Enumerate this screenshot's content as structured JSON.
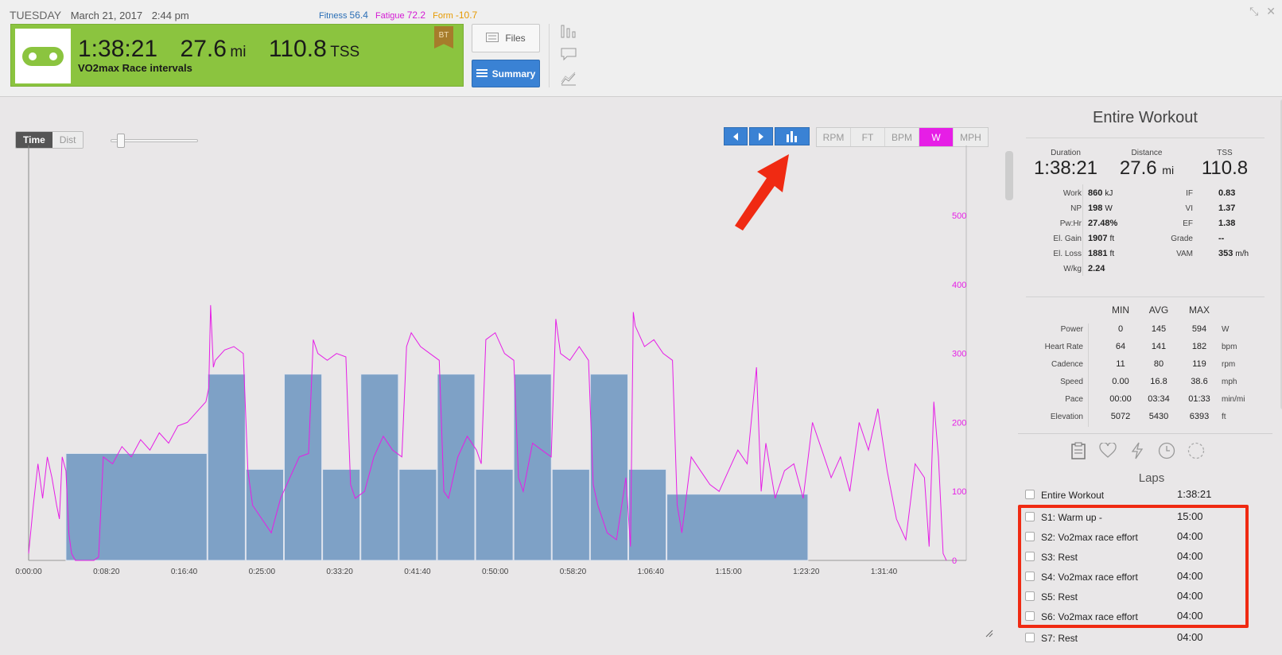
{
  "header": {
    "day": "TUESDAY",
    "date": "March 21, 2017",
    "time": "2:44 pm",
    "fitness_label": "Fitness",
    "fitness_value": "56.4",
    "fatigue_label": "Fatigue",
    "fatigue_value": "72.2",
    "form_label": "Form",
    "form_value": "-10.7",
    "colors": {
      "fitness": "#2b6fb6",
      "fatigue": "#d41ad4",
      "form": "#e69a00"
    }
  },
  "workout": {
    "duration": "1:38:21",
    "distance": "27.6",
    "distance_unit": "mi",
    "tss": "110.8",
    "tss_unit": "TSS",
    "title": "VO2max Race intervals",
    "badge": "BT",
    "card_color": "#8bc43f",
    "sport_icon": "bike-chain-icon"
  },
  "buttons": {
    "files": "Files",
    "summary": "Summary"
  },
  "chart_controls": {
    "time": "Time",
    "dist": "Dist",
    "units": [
      "RPM",
      "FT",
      "BPM",
      "W",
      "MPH"
    ],
    "active_unit": "W"
  },
  "chart_data": {
    "type": "line",
    "title": "",
    "xlabel": "",
    "ylabel": "",
    "x_ticks": [
      "0:00:00",
      "0:08:20",
      "0:16:40",
      "0:25:00",
      "0:33:20",
      "0:41:40",
      "0:50:00",
      "0:58:20",
      "1:06:40",
      "1:15:00",
      "1:23:20",
      "1:31:40"
    ],
    "y_ticks": [
      "0",
      "100",
      "200",
      "300",
      "400",
      "500"
    ],
    "ylim": [
      0,
      590
    ],
    "xlim_minutes": [
      0,
      98.35
    ],
    "series": [
      {
        "color": "#e61ee6",
        "points_minutes_watts": [
          [
            0,
            10
          ],
          [
            0.5,
            80
          ],
          [
            1,
            140
          ],
          [
            1.5,
            90
          ],
          [
            2,
            150
          ],
          [
            2.5,
            120
          ],
          [
            3,
            80
          ],
          [
            3.3,
            60
          ],
          [
            3.6,
            150
          ],
          [
            4,
            130
          ],
          [
            4.3,
            40
          ],
          [
            4.6,
            10
          ],
          [
            5,
            0
          ],
          [
            7,
            0
          ],
          [
            7.5,
            5
          ],
          [
            8,
            150
          ],
          [
            9,
            140
          ],
          [
            10,
            165
          ],
          [
            11,
            150
          ],
          [
            12,
            175
          ],
          [
            13,
            160
          ],
          [
            14,
            185
          ],
          [
            15,
            170
          ],
          [
            16,
            195
          ],
          [
            17,
            200
          ],
          [
            18,
            215
          ],
          [
            19,
            230
          ],
          [
            19.3,
            250
          ],
          [
            19.5,
            370
          ],
          [
            19.8,
            280
          ],
          [
            20,
            290
          ],
          [
            21,
            305
          ],
          [
            22,
            310
          ],
          [
            23,
            300
          ],
          [
            23.5,
            130
          ],
          [
            24,
            80
          ],
          [
            25,
            60
          ],
          [
            26,
            40
          ],
          [
            27,
            90
          ],
          [
            28,
            120
          ],
          [
            29,
            150
          ],
          [
            30,
            155
          ],
          [
            30.5,
            320
          ],
          [
            31,
            300
          ],
          [
            32,
            290
          ],
          [
            33,
            300
          ],
          [
            34,
            295
          ],
          [
            34.5,
            110
          ],
          [
            35,
            90
          ],
          [
            36,
            100
          ],
          [
            37,
            150
          ],
          [
            38,
            180
          ],
          [
            39,
            160
          ],
          [
            40,
            150
          ],
          [
            40.5,
            310
          ],
          [
            41,
            330
          ],
          [
            42,
            310
          ],
          [
            43,
            300
          ],
          [
            44,
            290
          ],
          [
            44.5,
            100
          ],
          [
            45,
            90
          ],
          [
            46,
            150
          ],
          [
            47,
            180
          ],
          [
            48,
            160
          ],
          [
            48.5,
            140
          ],
          [
            49,
            320
          ],
          [
            50,
            330
          ],
          [
            51,
            300
          ],
          [
            52,
            290
          ],
          [
            52.5,
            120
          ],
          [
            53,
            100
          ],
          [
            54,
            170
          ],
          [
            55,
            160
          ],
          [
            56,
            150
          ],
          [
            56.5,
            350
          ],
          [
            57,
            300
          ],
          [
            58,
            290
          ],
          [
            59,
            310
          ],
          [
            60,
            290
          ],
          [
            60.5,
            110
          ],
          [
            61,
            80
          ],
          [
            62,
            40
          ],
          [
            63,
            30
          ],
          [
            64,
            120
          ],
          [
            64.5,
            20
          ],
          [
            64.8,
            360
          ],
          [
            65,
            340
          ],
          [
            66,
            310
          ],
          [
            67,
            320
          ],
          [
            68,
            300
          ],
          [
            69,
            290
          ],
          [
            69.5,
            80
          ],
          [
            70,
            40
          ],
          [
            71,
            150
          ],
          [
            72,
            130
          ],
          [
            73,
            110
          ],
          [
            74,
            100
          ],
          [
            75,
            130
          ],
          [
            76,
            160
          ],
          [
            77,
            140
          ],
          [
            78,
            280
          ],
          [
            78.5,
            100
          ],
          [
            79,
            170
          ],
          [
            80,
            90
          ],
          [
            81,
            130
          ],
          [
            82,
            140
          ],
          [
            83,
            90
          ],
          [
            84,
            200
          ],
          [
            85,
            160
          ],
          [
            86,
            120
          ],
          [
            87,
            150
          ],
          [
            88,
            100
          ],
          [
            89,
            200
          ],
          [
            90,
            160
          ],
          [
            91,
            220
          ],
          [
            92,
            130
          ],
          [
            93,
            60
          ],
          [
            94,
            30
          ],
          [
            95,
            140
          ],
          [
            96,
            120
          ],
          [
            96.5,
            20
          ],
          [
            97,
            230
          ],
          [
            97.5,
            150
          ],
          [
            98,
            10
          ],
          [
            98.35,
            0
          ]
        ]
      },
      {
        "color": "#5a8abb",
        "intervals_minutes_watts": [
          [
            4,
            19.2,
            155
          ],
          [
            19.2,
            23.3,
            270
          ],
          [
            23.3,
            27.4,
            132
          ],
          [
            27.4,
            31.5,
            270
          ],
          [
            31.5,
            35.6,
            132
          ],
          [
            35.6,
            39.7,
            270
          ],
          [
            39.7,
            43.8,
            132
          ],
          [
            43.8,
            47.9,
            270
          ],
          [
            47.9,
            52.0,
            132
          ],
          [
            52.0,
            56.1,
            270
          ],
          [
            56.1,
            60.2,
            132
          ],
          [
            60.2,
            64.3,
            270
          ],
          [
            64.3,
            68.4,
            132
          ],
          [
            68.4,
            83.6,
            96
          ]
        ]
      }
    ]
  },
  "summary": {
    "title": "Entire Workout",
    "duration_label": "Duration",
    "duration": "1:38:21",
    "distance_label": "Distance",
    "distance": "27.6",
    "distance_unit": "mi",
    "tss_label": "TSS",
    "tss": "110.8",
    "rows": [
      {
        "l1": "Work",
        "v1": "860",
        "u1": "kJ",
        "l2": "IF",
        "v2": "0.83",
        "u2": ""
      },
      {
        "l1": "NP",
        "v1": "198",
        "u1": "W",
        "l2": "VI",
        "v2": "1.37",
        "u2": ""
      },
      {
        "l1": "Pw:Hr",
        "v1": "27.48%",
        "u1": "",
        "l2": "EF",
        "v2": "1.38",
        "u2": ""
      },
      {
        "l1": "El. Gain",
        "v1": "1907",
        "u1": "ft",
        "l2": "Grade",
        "v2": "--",
        "u2": ""
      },
      {
        "l1": "El. Loss",
        "v1": "1881",
        "u1": "ft",
        "l2": "VAM",
        "v2": "353",
        "u2": "m/h"
      },
      {
        "l1": "W/kg",
        "v1": "2.24",
        "u1": "",
        "l2": "",
        "v2": "",
        "u2": ""
      }
    ],
    "minmax_headers": [
      "MIN",
      "AVG",
      "MAX"
    ],
    "minmax": [
      {
        "label": "Power",
        "min": "0",
        "avg": "145",
        "max": "594",
        "unit": "W"
      },
      {
        "label": "Heart Rate",
        "min": "64",
        "avg": "141",
        "max": "182",
        "unit": "bpm"
      },
      {
        "label": "Cadence",
        "min": "11",
        "avg": "80",
        "max": "119",
        "unit": "rpm"
      },
      {
        "label": "Speed",
        "min": "0.00",
        "avg": "16.8",
        "max": "38.6",
        "unit": "mph"
      },
      {
        "label": "Pace",
        "min": "00:00",
        "avg": "03:34",
        "max": "01:33",
        "unit": "min/mi"
      },
      {
        "label": "Elevation",
        "min": "5072",
        "avg": "5430",
        "max": "6393",
        "unit": "ft"
      }
    ],
    "laps_title": "Laps",
    "laps": [
      {
        "name": "Entire Workout",
        "time": "1:38:21"
      },
      {
        "name": "S1: Warm up -",
        "time": "15:00"
      },
      {
        "name": "S2: Vo2max race effort",
        "time": "04:00"
      },
      {
        "name": "S3: Rest",
        "time": "04:00"
      },
      {
        "name": "S4: Vo2max race effort",
        "time": "04:00"
      },
      {
        "name": "S5: Rest",
        "time": "04:00"
      },
      {
        "name": "S6: Vo2max race effort",
        "time": "04:00"
      },
      {
        "name": "S7: Rest",
        "time": "04:00"
      }
    ]
  }
}
